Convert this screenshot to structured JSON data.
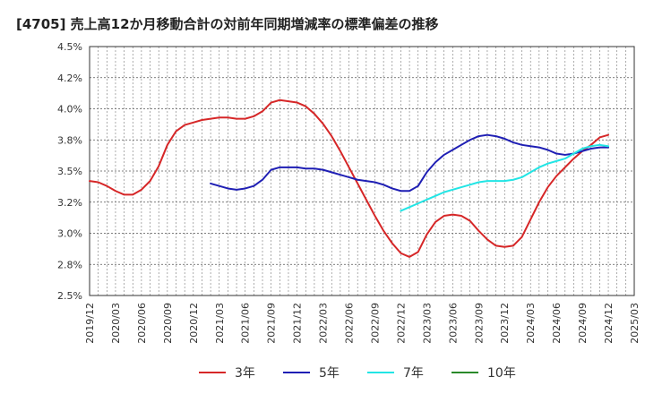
{
  "title": "[4705]  売上高12か月移動合計の対前年同期増減率の標準偏差の推移",
  "chart_data": {
    "type": "line",
    "title": "[4705]  売上高12か月移動合計の対前年同期増減率の標準偏差の推移",
    "xlabel": "",
    "ylabel": "",
    "ylim": [
      2.5,
      4.5
    ],
    "yticks": [
      "4.5%",
      "4.2%",
      "4.0%",
      "3.8%",
      "3.5%",
      "3.2%",
      "3.0%",
      "2.8%",
      "2.5%"
    ],
    "xticks": [
      "2019/12",
      "2020/03",
      "2020/06",
      "2020/09",
      "2020/12",
      "2021/03",
      "2021/06",
      "2021/09",
      "2021/12",
      "2022/03",
      "2022/06",
      "2022/09",
      "2022/12",
      "2023/03",
      "2023/06",
      "2023/09",
      "2023/12",
      "2024/03",
      "2024/06",
      "2024/09",
      "2024/12",
      "2025/03"
    ],
    "grid": true,
    "legend_position": "bottom",
    "series": [
      {
        "name": "3年",
        "color": "#d62728",
        "points": [
          [
            "2019/12",
            3.42
          ],
          [
            "2020/01",
            3.41
          ],
          [
            "2020/02",
            3.38
          ],
          [
            "2020/03",
            3.34
          ],
          [
            "2020/04",
            3.31
          ],
          [
            "2020/05",
            3.31
          ],
          [
            "2020/06",
            3.35
          ],
          [
            "2020/07",
            3.42
          ],
          [
            "2020/08",
            3.54
          ],
          [
            "2020/09",
            3.71
          ],
          [
            "2020/10",
            3.82
          ],
          [
            "2020/11",
            3.87
          ],
          [
            "2020/12",
            3.89
          ],
          [
            "2021/01",
            3.91
          ],
          [
            "2021/02",
            3.92
          ],
          [
            "2021/03",
            3.93
          ],
          [
            "2021/04",
            3.93
          ],
          [
            "2021/05",
            3.92
          ],
          [
            "2021/06",
            3.92
          ],
          [
            "2021/07",
            3.94
          ],
          [
            "2021/08",
            3.98
          ],
          [
            "2021/09",
            4.05
          ],
          [
            "2021/10",
            4.07
          ],
          [
            "2021/11",
            4.06
          ],
          [
            "2021/12",
            4.05
          ],
          [
            "2022/01",
            4.02
          ],
          [
            "2022/02",
            3.96
          ],
          [
            "2022/03",
            3.88
          ],
          [
            "2022/04",
            3.78
          ],
          [
            "2022/05",
            3.66
          ],
          [
            "2022/06",
            3.53
          ],
          [
            "2022/07",
            3.4
          ],
          [
            "2022/08",
            3.27
          ],
          [
            "2022/09",
            3.14
          ],
          [
            "2022/10",
            3.02
          ],
          [
            "2022/11",
            2.92
          ],
          [
            "2022/12",
            2.84
          ],
          [
            "2023/01",
            2.81
          ],
          [
            "2023/02",
            2.85
          ],
          [
            "2023/03",
            2.99
          ],
          [
            "2023/04",
            3.09
          ],
          [
            "2023/05",
            3.14
          ],
          [
            "2023/06",
            3.15
          ],
          [
            "2023/07",
            3.14
          ],
          [
            "2023/08",
            3.1
          ],
          [
            "2023/09",
            3.02
          ],
          [
            "2023/10",
            2.95
          ],
          [
            "2023/11",
            2.9
          ],
          [
            "2023/12",
            2.89
          ],
          [
            "2024/01",
            2.9
          ],
          [
            "2024/02",
            2.97
          ],
          [
            "2024/03",
            3.11
          ],
          [
            "2024/04",
            3.25
          ],
          [
            "2024/05",
            3.37
          ],
          [
            "2024/06",
            3.46
          ],
          [
            "2024/07",
            3.53
          ],
          [
            "2024/08",
            3.6
          ],
          [
            "2024/09",
            3.66
          ],
          [
            "2024/10",
            3.71
          ],
          [
            "2024/11",
            3.77
          ],
          [
            "2024/12",
            3.79
          ]
        ]
      },
      {
        "name": "5年",
        "color": "#1f1fb4",
        "points": [
          [
            "2021/02",
            3.4
          ],
          [
            "2021/03",
            3.38
          ],
          [
            "2021/04",
            3.36
          ],
          [
            "2021/05",
            3.35
          ],
          [
            "2021/06",
            3.36
          ],
          [
            "2021/07",
            3.38
          ],
          [
            "2021/08",
            3.43
          ],
          [
            "2021/09",
            3.51
          ],
          [
            "2021/10",
            3.53
          ],
          [
            "2021/11",
            3.53
          ],
          [
            "2021/12",
            3.53
          ],
          [
            "2022/01",
            3.52
          ],
          [
            "2022/02",
            3.52
          ],
          [
            "2022/03",
            3.51
          ],
          [
            "2022/04",
            3.49
          ],
          [
            "2022/05",
            3.47
          ],
          [
            "2022/06",
            3.45
          ],
          [
            "2022/07",
            3.43
          ],
          [
            "2022/08",
            3.42
          ],
          [
            "2022/09",
            3.41
          ],
          [
            "2022/10",
            3.39
          ],
          [
            "2022/11",
            3.36
          ],
          [
            "2022/12",
            3.34
          ],
          [
            "2023/01",
            3.34
          ],
          [
            "2023/02",
            3.38
          ],
          [
            "2023/03",
            3.49
          ],
          [
            "2023/04",
            3.57
          ],
          [
            "2023/05",
            3.63
          ],
          [
            "2023/06",
            3.67
          ],
          [
            "2023/07",
            3.71
          ],
          [
            "2023/08",
            3.75
          ],
          [
            "2023/09",
            3.78
          ],
          [
            "2023/10",
            3.79
          ],
          [
            "2023/11",
            3.78
          ],
          [
            "2023/12",
            3.76
          ],
          [
            "2024/01",
            3.73
          ],
          [
            "2024/02",
            3.71
          ],
          [
            "2024/03",
            3.7
          ],
          [
            "2024/04",
            3.69
          ],
          [
            "2024/05",
            3.67
          ],
          [
            "2024/06",
            3.64
          ],
          [
            "2024/07",
            3.63
          ],
          [
            "2024/08",
            3.64
          ],
          [
            "2024/09",
            3.66
          ],
          [
            "2024/10",
            3.68
          ],
          [
            "2024/11",
            3.69
          ],
          [
            "2024/12",
            3.69
          ]
        ]
      },
      {
        "name": "7年",
        "color": "#22e5e5",
        "points": [
          [
            "2022/12",
            3.18
          ],
          [
            "2023/01",
            3.21
          ],
          [
            "2023/02",
            3.24
          ],
          [
            "2023/03",
            3.27
          ],
          [
            "2023/04",
            3.3
          ],
          [
            "2023/05",
            3.33
          ],
          [
            "2023/06",
            3.35
          ],
          [
            "2023/07",
            3.37
          ],
          [
            "2023/08",
            3.39
          ],
          [
            "2023/09",
            3.41
          ],
          [
            "2023/10",
            3.42
          ],
          [
            "2023/11",
            3.42
          ],
          [
            "2023/12",
            3.42
          ],
          [
            "2024/01",
            3.43
          ],
          [
            "2024/02",
            3.45
          ],
          [
            "2024/03",
            3.49
          ],
          [
            "2024/04",
            3.53
          ],
          [
            "2024/05",
            3.56
          ],
          [
            "2024/06",
            3.58
          ],
          [
            "2024/07",
            3.6
          ],
          [
            "2024/08",
            3.64
          ],
          [
            "2024/09",
            3.68
          ],
          [
            "2024/10",
            3.7
          ],
          [
            "2024/11",
            3.71
          ],
          [
            "2024/12",
            3.7
          ]
        ]
      },
      {
        "name": "10年",
        "color": "#2a8a2a",
        "points": []
      }
    ]
  }
}
